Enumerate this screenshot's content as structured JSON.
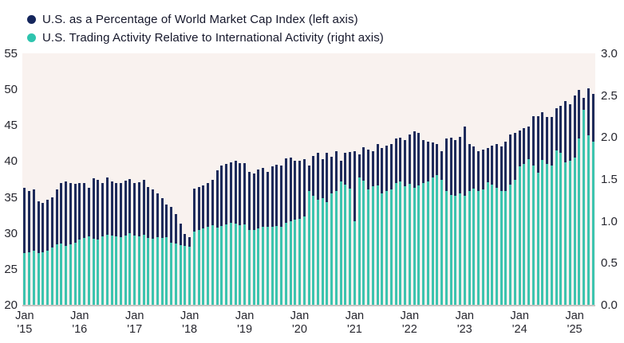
{
  "legend": {
    "items": [
      {
        "label": "U.S. as a Percentage of World Market Cap Index (left axis)",
        "color": "#15265c"
      },
      {
        "label": "U.S. Trading Activity Relative to International Activity (right axis)",
        "color": "#2ec4ae"
      }
    ]
  },
  "chart_data": {
    "type": "bar",
    "title": "",
    "grid": "off",
    "plot_background": "#f9f2ef",
    "baseline_color": "#c9c5c3",
    "months_start": "Jan 2015",
    "months_end": "May 2025",
    "left_axis": {
      "side": "left",
      "range": [
        20,
        55
      ],
      "ticks": [
        55,
        50,
        45,
        40,
        35,
        30,
        25,
        20
      ]
    },
    "right_axis": {
      "side": "right",
      "range": [
        0,
        3
      ],
      "ticks": [
        "3.0",
        "2.5",
        "2.0",
        "1.5",
        "1.0",
        "0.5",
        "0.0"
      ]
    },
    "x_axis": {
      "labels": [
        {
          "top": "Jan",
          "bottom": "'15"
        },
        {
          "top": "Jan",
          "bottom": "'16"
        },
        {
          "top": "Jan",
          "bottom": "'17"
        },
        {
          "top": "Jan",
          "bottom": "'18"
        },
        {
          "top": "Jan",
          "bottom": "'19"
        },
        {
          "top": "Jan",
          "bottom": "'20"
        },
        {
          "top": "Jan",
          "bottom": "'21"
        },
        {
          "top": "Jan",
          "bottom": "'22"
        },
        {
          "top": "Jan",
          "bottom": "'23"
        },
        {
          "top": "Jan",
          "bottom": "'24"
        },
        {
          "top": "Jan",
          "bottom": "'25"
        }
      ]
    },
    "series": [
      {
        "name": "U.S. as a Percentage of World Market Cap Index",
        "axis": "left",
        "color": "#1e2b5b",
        "values": [
          36.3,
          35.8,
          36.1,
          34.4,
          34.2,
          34.6,
          34.9,
          36.1,
          37.0,
          37.2,
          36.9,
          36.8,
          36.9,
          37.0,
          36.3,
          37.6,
          37.4,
          37.0,
          37.7,
          37.2,
          37.0,
          36.9,
          37.3,
          37.5,
          37.0,
          37.1,
          37.4,
          36.4,
          36.1,
          35.5,
          34.8,
          34.0,
          33.6,
          32.6,
          31.3,
          29.9,
          29.4,
          36.2,
          36.4,
          36.6,
          36.9,
          37.4,
          38.7,
          39.4,
          39.6,
          39.8,
          40.0,
          39.7,
          39.7,
          38.5,
          38.3,
          38.8,
          39.0,
          38.5,
          39.3,
          39.5,
          39.4,
          40.4,
          40.5,
          40.1,
          40.0,
          40.3,
          39.4,
          40.7,
          41.2,
          40.3,
          41.1,
          40.6,
          41.4,
          40.1,
          41.1,
          41.3,
          41.4,
          40.9,
          41.9,
          41.6,
          41.4,
          42.4,
          41.8,
          42.2,
          42.4,
          43.1,
          43.3,
          42.9,
          43.7,
          44.2,
          43.9,
          42.9,
          42.7,
          42.6,
          42.4,
          41.4,
          43.1,
          43.3,
          42.9,
          43.4,
          44.8,
          42.4,
          42.0,
          41.4,
          41.6,
          41.8,
          42.2,
          42.4,
          42.0,
          42.7,
          43.7,
          43.9,
          44.3,
          44.6,
          44.8,
          46.3,
          46.3,
          46.8,
          46.1,
          46.1,
          47.4,
          47.7,
          48.4,
          47.9,
          49.1,
          49.9,
          48.8,
          50.1,
          49.3
        ]
      },
      {
        "name": "U.S. Trading Activity Relative to International Activity",
        "axis": "right",
        "color": "#3cc4af",
        "values": [
          0.62,
          0.63,
          0.65,
          0.62,
          0.63,
          0.65,
          0.68,
          0.72,
          0.73,
          0.7,
          0.72,
          0.74,
          0.78,
          0.8,
          0.82,
          0.79,
          0.78,
          0.82,
          0.84,
          0.83,
          0.82,
          0.81,
          0.83,
          0.85,
          0.83,
          0.82,
          0.84,
          0.8,
          0.79,
          0.81,
          0.8,
          0.81,
          0.74,
          0.73,
          0.71,
          0.7,
          0.69,
          0.87,
          0.89,
          0.91,
          0.93,
          0.95,
          0.92,
          0.94,
          0.96,
          0.98,
          0.97,
          0.95,
          0.96,
          0.89,
          0.89,
          0.91,
          0.93,
          0.93,
          0.93,
          0.94,
          0.93,
          0.98,
          1.0,
          1.02,
          1.03,
          1.05,
          1.36,
          1.3,
          1.25,
          1.27,
          1.22,
          1.33,
          1.36,
          1.47,
          1.43,
          1.39,
          1.0,
          1.52,
          1.48,
          1.38,
          1.41,
          1.42,
          1.33,
          1.36,
          1.38,
          1.45,
          1.47,
          1.41,
          1.44,
          1.4,
          1.42,
          1.45,
          1.47,
          1.52,
          1.55,
          1.49,
          1.36,
          1.31,
          1.3,
          1.33,
          1.3,
          1.36,
          1.39,
          1.36,
          1.38,
          1.46,
          1.43,
          1.4,
          1.36,
          1.36,
          1.43,
          1.49,
          1.65,
          1.68,
          1.74,
          1.66,
          1.58,
          1.73,
          1.68,
          1.66,
          1.84,
          1.81,
          1.7,
          1.72,
          1.76,
          1.98,
          2.33,
          2.02,
          1.95
        ]
      }
    ]
  }
}
